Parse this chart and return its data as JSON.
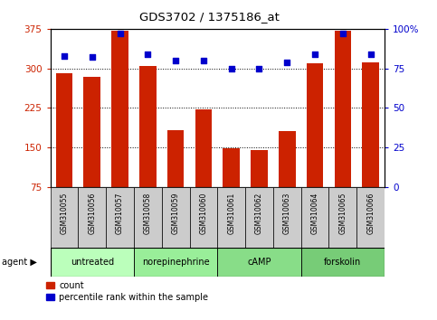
{
  "title": "GDS3702 / 1375186_at",
  "samples": [
    "GSM310055",
    "GSM310056",
    "GSM310057",
    "GSM310058",
    "GSM310059",
    "GSM310060",
    "GSM310061",
    "GSM310062",
    "GSM310063",
    "GSM310064",
    "GSM310065",
    "GSM310066"
  ],
  "counts": [
    291,
    284,
    372,
    305,
    183,
    222,
    148,
    146,
    181,
    310,
    371,
    312
  ],
  "percentiles": [
    83,
    82,
    97,
    84,
    80,
    80,
    75,
    75,
    79,
    84,
    97,
    84
  ],
  "ylim_left": [
    75,
    375
  ],
  "ylim_right": [
    0,
    100
  ],
  "yticks_left": [
    75,
    150,
    225,
    300,
    375
  ],
  "yticks_right": [
    0,
    25,
    50,
    75,
    100
  ],
  "bar_color": "#cc2200",
  "dot_color": "#0000cc",
  "groups": [
    {
      "label": "untreated",
      "start": 0,
      "end": 3,
      "color": "#bbffbb"
    },
    {
      "label": "norepinephrine",
      "start": 3,
      "end": 6,
      "color": "#99ee99"
    },
    {
      "label": "cAMP",
      "start": 6,
      "end": 9,
      "color": "#88dd88"
    },
    {
      "label": "forskolin",
      "start": 9,
      "end": 12,
      "color": "#77cc77"
    }
  ],
  "agent_label": "agent",
  "legend_count_label": "count",
  "legend_pct_label": "percentile rank within the sample",
  "tick_bg_color": "#cccccc",
  "bar_width": 0.6
}
